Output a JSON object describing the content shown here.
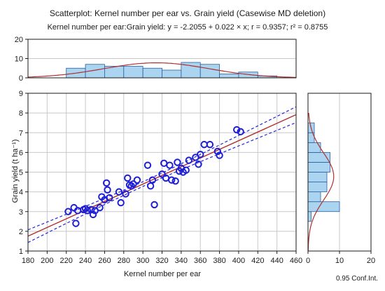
{
  "title": "Scatterplot: Kernel number per ear vs. Grain yield (Casewise MD deletion)",
  "subtitle": "Kernel number per ear:Grain yield: y = -2.2055 + 0.022 × x; r = 0.9357; r² = 0.8755",
  "footnote": "0.95 Conf.Int.",
  "colors": {
    "points": "#1f1fd6",
    "fit_line": "#b03030",
    "conf_band": "#2424e0",
    "hist_fill": "#aad4ef",
    "hist_stroke": "#2a5fa0",
    "normal_curve": "#b03030",
    "grid": "#c8c8c8",
    "axis": "#1a1a1a"
  },
  "chart_data": [
    {
      "type": "scatter",
      "xlabel": "Kernel number per ear",
      "ylabel": "Grain yield (t ha⁻¹)",
      "xlim": [
        180,
        460
      ],
      "ylim": [
        1,
        9
      ],
      "xticks": [
        180,
        200,
        220,
        240,
        260,
        280,
        300,
        320,
        340,
        360,
        380,
        400,
        420,
        440,
        460
      ],
      "yticks": [
        1,
        2,
        3,
        4,
        5,
        6,
        7,
        8,
        9
      ],
      "grid": true,
      "fit": {
        "intercept": -2.2055,
        "slope": 0.022,
        "r": 0.9357,
        "r2": 0.8755
      },
      "confidence_band": "0.95 Conf.Int.",
      "points": [
        {
          "x": 222,
          "y": 3.0
        },
        {
          "x": 228,
          "y": 3.2
        },
        {
          "x": 230,
          "y": 2.4
        },
        {
          "x": 232,
          "y": 3.05
        },
        {
          "x": 238,
          "y": 3.1
        },
        {
          "x": 240,
          "y": 3.15
        },
        {
          "x": 242,
          "y": 3.05
        },
        {
          "x": 246,
          "y": 3.1
        },
        {
          "x": 248,
          "y": 2.85
        },
        {
          "x": 250,
          "y": 3.05
        },
        {
          "x": 255,
          "y": 3.2
        },
        {
          "x": 257,
          "y": 3.75
        },
        {
          "x": 260,
          "y": 3.6
        },
        {
          "x": 262,
          "y": 4.45
        },
        {
          "x": 263,
          "y": 4.1
        },
        {
          "x": 265,
          "y": 3.7
        },
        {
          "x": 275,
          "y": 4.0
        },
        {
          "x": 277,
          "y": 3.45
        },
        {
          "x": 282,
          "y": 3.9
        },
        {
          "x": 284,
          "y": 4.7
        },
        {
          "x": 286,
          "y": 4.35
        },
        {
          "x": 288,
          "y": 4.3
        },
        {
          "x": 290,
          "y": 4.4
        },
        {
          "x": 294,
          "y": 4.6
        },
        {
          "x": 305,
          "y": 5.35
        },
        {
          "x": 308,
          "y": 4.3
        },
        {
          "x": 310,
          "y": 4.6
        },
        {
          "x": 312,
          "y": 3.35
        },
        {
          "x": 320,
          "y": 4.9
        },
        {
          "x": 322,
          "y": 5.45
        },
        {
          "x": 324,
          "y": 4.7
        },
        {
          "x": 328,
          "y": 5.35
        },
        {
          "x": 330,
          "y": 4.6
        },
        {
          "x": 334,
          "y": 4.55
        },
        {
          "x": 336,
          "y": 5.5
        },
        {
          "x": 338,
          "y": 5.05
        },
        {
          "x": 340,
          "y": 5.2
        },
        {
          "x": 342,
          "y": 5.0
        },
        {
          "x": 345,
          "y": 5.1
        },
        {
          "x": 348,
          "y": 5.6
        },
        {
          "x": 355,
          "y": 5.75
        },
        {
          "x": 358,
          "y": 5.4
        },
        {
          "x": 360,
          "y": 5.9
        },
        {
          "x": 364,
          "y": 6.4
        },
        {
          "x": 370,
          "y": 6.4
        },
        {
          "x": 378,
          "y": 6.05
        },
        {
          "x": 380,
          "y": 5.85
        },
        {
          "x": 398,
          "y": 7.15
        },
        {
          "x": 402,
          "y": 7.05
        }
      ]
    },
    {
      "type": "bar",
      "orientation": "vertical",
      "variable": "Kernel number per ear",
      "ylim": [
        0,
        20
      ],
      "yticks": [
        0,
        10,
        20
      ],
      "bin_edges": [
        180,
        200,
        220,
        240,
        260,
        280,
        300,
        320,
        340,
        360,
        380,
        400,
        420,
        440,
        460
      ],
      "values": [
        0,
        0,
        5,
        7,
        6,
        6,
        5,
        4,
        8,
        7,
        2,
        3,
        1,
        0
      ],
      "normal_curve": true
    },
    {
      "type": "bar",
      "orientation": "horizontal",
      "variable": "Grain yield",
      "xlim": [
        0,
        20
      ],
      "xticks": [
        0,
        10,
        20
      ],
      "bin_edges": [
        1.0,
        1.5,
        2.0,
        2.5,
        3.0,
        3.5,
        4.0,
        4.5,
        5.0,
        5.5,
        6.0,
        6.5,
        7.0,
        7.5,
        8.0
      ],
      "values": [
        0,
        0,
        0,
        1,
        10,
        4,
        6,
        6,
        7,
        7,
        4,
        2,
        2,
        0
      ],
      "normal_curve": true
    }
  ]
}
